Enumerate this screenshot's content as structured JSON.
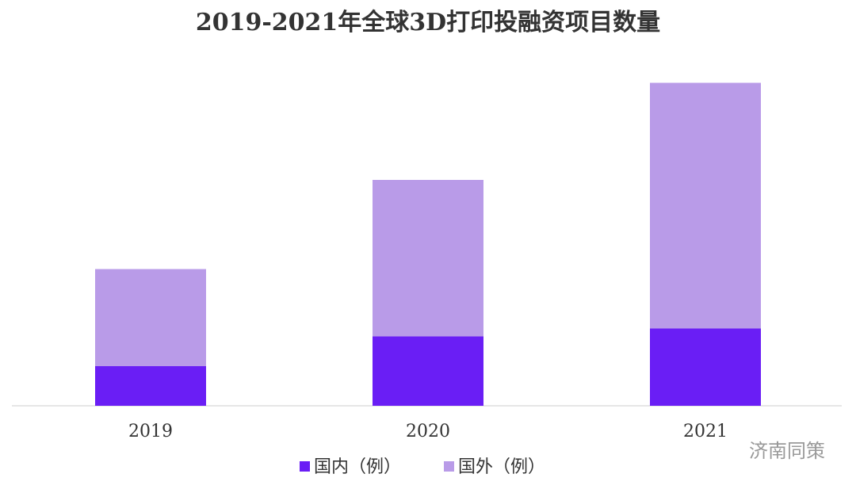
{
  "chart_data": {
    "type": "stacked_bar",
    "title": "2019-2021年全球3D打印投融资项目数量",
    "categories": [
      "2019",
      "2020",
      "2021"
    ],
    "series": [
      {
        "name": "国内（例）",
        "color": "#6a1ef5",
        "values": [
          20,
          35,
          39
        ]
      },
      {
        "name": "国外（例）",
        "color": "#b99be8",
        "values": [
          49,
          79,
          124
        ]
      }
    ],
    "ylim": [
      0,
      170
    ],
    "legend": "bottom",
    "watermark": "济南同策"
  }
}
